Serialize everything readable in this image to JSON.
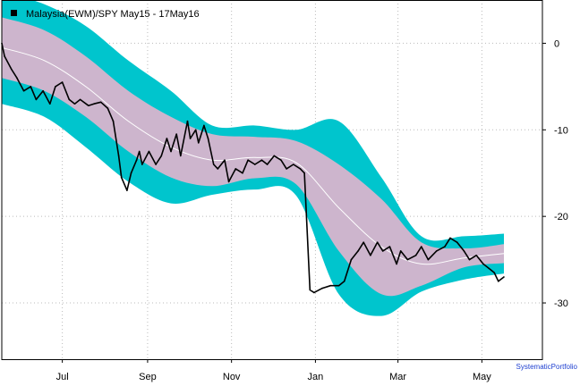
{
  "colors": {
    "outer_band": "#00c5cd",
    "inner_band": "#cdb5cd",
    "mean_line": "#ffffff",
    "price_line": "#000000",
    "grid": "#bbbbbb",
    "credit": "#1e3fd0"
  },
  "chart_data": {
    "type": "line",
    "title": "Malaysia(EWM)/SPY May15 - 17May16",
    "legend": {
      "label": "Malaysia(EWM)/SPY May15 - 17May16",
      "placement": "top-left"
    },
    "credit": "SystematicPortfolio",
    "xlabel": "",
    "ylabel": "",
    "xlim": [
      "2015-05-18",
      "2016-06-14"
    ],
    "ylim": [
      -36.5,
      5
    ],
    "grid": true,
    "x_ticks": [
      {
        "date": "2015-07-01",
        "label": "Jul"
      },
      {
        "date": "2015-09-01",
        "label": "Sep"
      },
      {
        "date": "2015-11-01",
        "label": "Nov"
      },
      {
        "date": "2016-01-01",
        "label": "Jan"
      },
      {
        "date": "2016-03-01",
        "label": "Mar"
      },
      {
        "date": "2016-05-01",
        "label": "May"
      }
    ],
    "y_ticks": [
      0,
      -10,
      -20,
      -30
    ],
    "y_tick_labels": [
      "0",
      "-10",
      "-20",
      "-30"
    ],
    "series": [
      {
        "role": "price",
        "x": [
          "2015-05-18",
          "2015-05-20",
          "2015-05-25",
          "2015-05-29",
          "2015-06-03",
          "2015-06-08",
          "2015-06-12",
          "2015-06-17",
          "2015-06-22",
          "2015-06-26",
          "2015-07-01",
          "2015-07-06",
          "2015-07-10",
          "2015-07-14",
          "2015-07-20",
          "2015-07-24",
          "2015-07-29",
          "2015-08-03",
          "2015-08-07",
          "2015-08-11",
          "2015-08-13",
          "2015-08-17",
          "2015-08-20",
          "2015-08-24",
          "2015-08-26",
          "2015-08-28",
          "2015-09-02",
          "2015-09-07",
          "2015-09-11",
          "2015-09-15",
          "2015-09-18",
          "2015-09-22",
          "2015-09-25",
          "2015-09-30",
          "2015-10-02",
          "2015-10-06",
          "2015-10-08",
          "2015-10-12",
          "2015-10-15",
          "2015-10-19",
          "2015-10-22",
          "2015-10-27",
          "2015-10-30",
          "2015-11-04",
          "2015-11-09",
          "2015-11-13",
          "2015-11-18",
          "2015-11-23",
          "2015-11-27",
          "2015-12-02",
          "2015-12-07",
          "2015-12-11",
          "2015-12-16",
          "2015-12-21",
          "2015-12-24",
          "2015-12-28",
          "2015-12-31",
          "2016-01-06",
          "2016-01-12",
          "2016-01-18",
          "2016-01-22",
          "2016-01-27",
          "2016-02-01",
          "2016-02-05",
          "2016-02-10",
          "2016-02-15",
          "2016-02-19",
          "2016-02-24",
          "2016-02-29",
          "2016-03-03",
          "2016-03-08",
          "2016-03-14",
          "2016-03-18",
          "2016-03-23",
          "2016-03-29",
          "2016-04-04",
          "2016-04-08",
          "2016-04-13",
          "2016-04-18",
          "2016-04-22",
          "2016-04-27",
          "2016-05-02",
          "2016-05-06",
          "2016-05-10",
          "2016-05-13",
          "2016-05-17"
        ],
        "y": [
          0,
          -1.5,
          -3,
          -4,
          -5.5,
          -5,
          -6.5,
          -5.5,
          -7,
          -5,
          -4.5,
          -6.5,
          -7,
          -6.5,
          -7.2,
          -7,
          -6.8,
          -7.5,
          -9,
          -13,
          -15.5,
          -17,
          -15,
          -13.5,
          -12.5,
          -14,
          -12.5,
          -14,
          -13,
          -11,
          -12.5,
          -10.5,
          -13,
          -9,
          -11,
          -10,
          -11.5,
          -9.5,
          -11,
          -14,
          -14.5,
          -13.5,
          -16,
          -14.5,
          -15,
          -13.5,
          -14,
          -13.5,
          -14,
          -13,
          -13.5,
          -14.5,
          -14,
          -14.5,
          -15,
          -28.5,
          -28.8,
          -28.3,
          -28,
          -28,
          -27.5,
          -25,
          -24,
          -23,
          -24.5,
          -23,
          -24,
          -23.5,
          -25.5,
          -24,
          -25,
          -24.5,
          -23.5,
          -25,
          -24,
          -23.5,
          -22.5,
          -23,
          -24,
          -25,
          -24.5,
          -25.5,
          -26,
          -26.5,
          -27.5,
          -27
        ]
      },
      {
        "role": "mean",
        "x": [
          "2015-05-18",
          "2015-06-18",
          "2015-07-18",
          "2015-08-18",
          "2015-09-18",
          "2015-10-18",
          "2015-11-18",
          "2015-12-18",
          "2016-01-18",
          "2016-02-18",
          "2016-03-18",
          "2016-04-18",
          "2016-05-17"
        ],
        "y": [
          -0.5,
          -2,
          -5,
          -9,
          -12,
          -13.5,
          -13.2,
          -13.8,
          -19,
          -23.5,
          -25.5,
          -24.8,
          -24.3
        ]
      },
      {
        "role": "band_1sd",
        "x": [
          "2015-05-18",
          "2015-06-18",
          "2015-07-18",
          "2015-08-18",
          "2015-09-18",
          "2015-10-18",
          "2015-11-18",
          "2015-12-18",
          "2016-01-18",
          "2016-02-18",
          "2016-03-18",
          "2016-04-18",
          "2016-05-17"
        ],
        "upper": [
          3,
          1.5,
          -1.5,
          -5.5,
          -8.5,
          -10.5,
          -10.8,
          -11.3,
          -14,
          -18,
          -23,
          -23.7,
          -23.2
        ],
        "lower": [
          -4,
          -5.5,
          -8.5,
          -12.5,
          -15.5,
          -16.5,
          -15.6,
          -16.3,
          -24,
          -29,
          -28,
          -25.9,
          -25.4
        ]
      },
      {
        "role": "band_2sd",
        "x": [
          "2015-05-18",
          "2015-06-18",
          "2015-07-18",
          "2015-08-18",
          "2015-09-18",
          "2015-10-18",
          "2015-11-18",
          "2015-12-18",
          "2016-01-18",
          "2016-02-18",
          "2016-03-18",
          "2016-04-18",
          "2016-05-17"
        ],
        "upper": [
          6,
          4.5,
          2,
          -2,
          -5.5,
          -9.5,
          -9.5,
          -10,
          -9,
          -15.5,
          -22.3,
          -22.3,
          -22
        ]
      }
    ]
  }
}
